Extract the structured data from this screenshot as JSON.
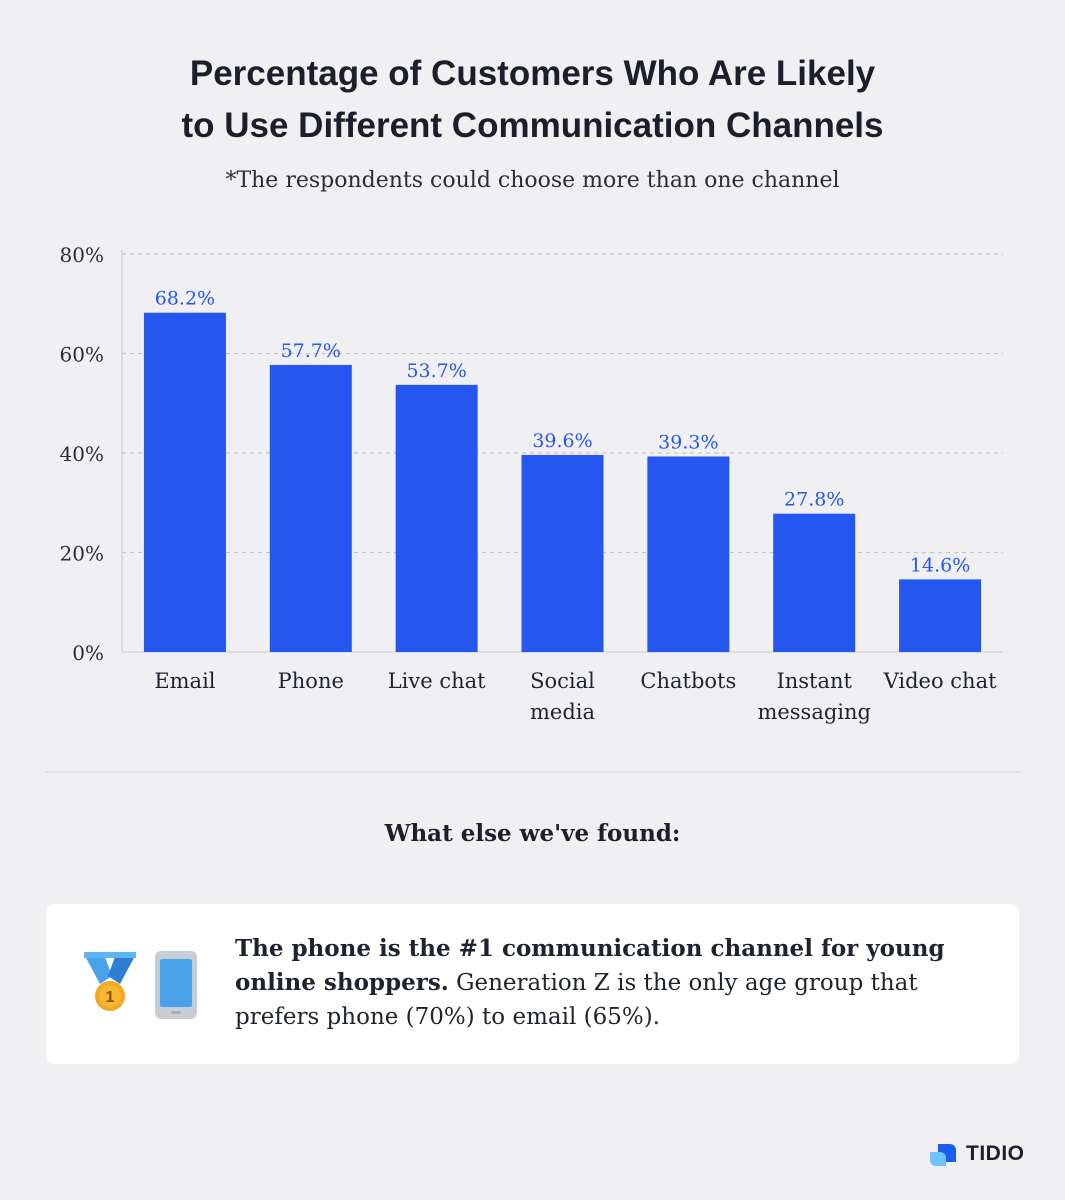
{
  "title_line1": "Percentage of Customers Who Are Likely",
  "title_line2": "to Use Different Communication Channels",
  "subtitle": "*The respondents could choose more than one channel",
  "colors": {
    "bar": "#2556f0",
    "label": "#2556f0",
    "grid": "#c4c4cc"
  },
  "chart_data": {
    "type": "bar",
    "categories": [
      [
        "Email"
      ],
      [
        "Phone"
      ],
      [
        "Live chat"
      ],
      [
        "Social",
        "media"
      ],
      [
        "Chatbots"
      ],
      [
        "Instant",
        "messaging"
      ],
      [
        "Video chat"
      ]
    ],
    "values": [
      68.2,
      57.7,
      53.7,
      39.6,
      39.3,
      27.8,
      14.6
    ],
    "value_labels": [
      "68.2%",
      "57.7%",
      "53.7%",
      "39.6%",
      "39.3%",
      "27.8%",
      "14.6%"
    ],
    "y_ticks": [
      0,
      20,
      40,
      60,
      80
    ],
    "y_tick_labels": [
      "0%",
      "20%",
      "40%",
      "60%",
      "80%"
    ],
    "ylim": [
      0,
      80
    ],
    "grid": "horizontal-dashed",
    "legend": "none"
  },
  "found_heading": "What else we've found:",
  "finding": {
    "bold": "The phone is the #1 communication channel for young online shoppers.",
    "text": " Generation Z is the only age group that prefers phone (70%) to email (65%).",
    "medal_number": "1",
    "icons": [
      "medal-icon",
      "phone-icon"
    ]
  },
  "brand": "TIDIO"
}
